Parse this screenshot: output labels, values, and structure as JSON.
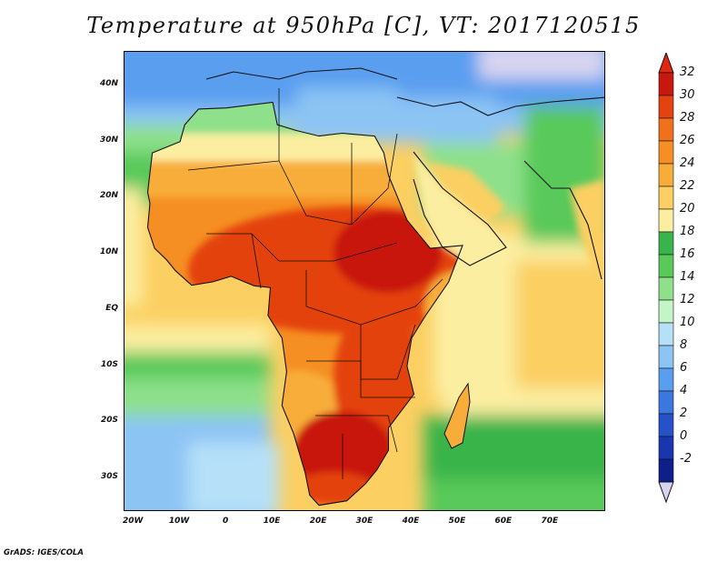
{
  "title": "Temperature at 950hPa [C], VT: 2017120515",
  "credit": "GrADS: IGES/COLA",
  "map": {
    "region": "Africa",
    "projection": "lat-lon",
    "variable": "Temperature at 950hPa",
    "units": "C",
    "lon_range": [
      -22,
      82
    ],
    "lat_range": [
      -36,
      46
    ]
  },
  "axes": {
    "lat_ticks": [
      {
        "label": "40N",
        "value": 40
      },
      {
        "label": "30N",
        "value": 30
      },
      {
        "label": "20N",
        "value": 20
      },
      {
        "label": "10N",
        "value": 10
      },
      {
        "label": "EQ",
        "value": 0
      },
      {
        "label": "10S",
        "value": -10
      },
      {
        "label": "20S",
        "value": -20
      },
      {
        "label": "30S",
        "value": -30
      }
    ],
    "lon_ticks": [
      {
        "label": "20W",
        "value": -20
      },
      {
        "label": "10W",
        "value": -10
      },
      {
        "label": "0",
        "value": 0
      },
      {
        "label": "10E",
        "value": 10
      },
      {
        "label": "20E",
        "value": 20
      },
      {
        "label": "30E",
        "value": 30
      },
      {
        "label": "40E",
        "value": 40
      },
      {
        "label": "50E",
        "value": 50
      },
      {
        "label": "60E",
        "value": 60
      },
      {
        "label": "70E",
        "value": 70
      }
    ]
  },
  "colorbar": {
    "labels": [
      "32",
      "30",
      "28",
      "26",
      "24",
      "22",
      "20",
      "18",
      "16",
      "14",
      "12",
      "10",
      "8",
      "6",
      "4",
      "2",
      "0",
      "-2"
    ],
    "colors_top_to_bottom": [
      "#c8180e",
      "#e4420f",
      "#f0701c",
      "#f58f23",
      "#f8ad3a",
      "#fbcf62",
      "#fceea1",
      "#38b44a",
      "#59c95a",
      "#8ee08a",
      "#c5f5c7",
      "#b6e0f8",
      "#8cc4f4",
      "#5a9ef0",
      "#3a78e0",
      "#2552c8",
      "#1836b0",
      "#0e1e8a"
    ],
    "over_color": "#e3260e",
    "under_color": "#d8d4f0"
  }
}
